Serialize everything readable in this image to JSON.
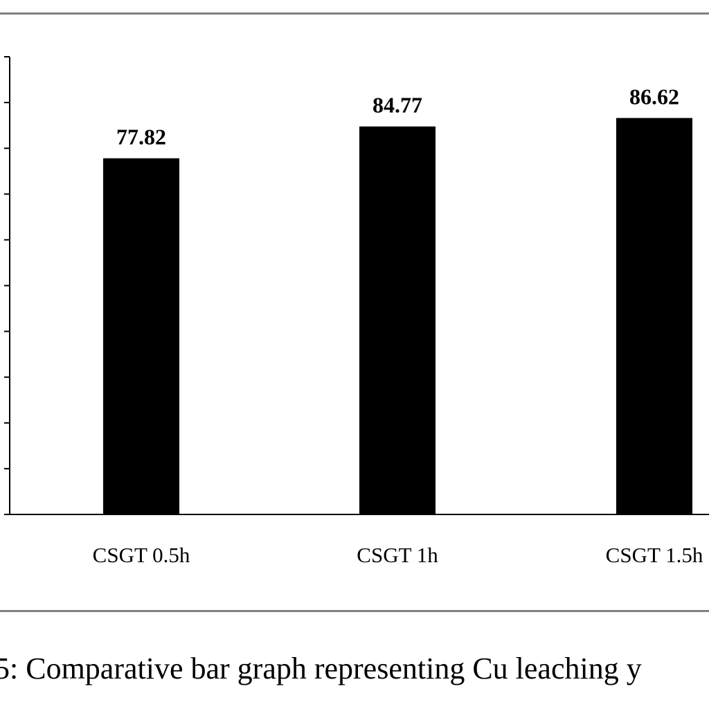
{
  "chart_data": {
    "type": "bar",
    "categories": [
      "CSGT 0.5h",
      "CSGT 1h",
      "CSGT 1.5h"
    ],
    "values": [
      77.82,
      84.77,
      86.62
    ],
    "data_labels": [
      "77.82",
      "84.77",
      "86.62"
    ],
    "ylim": [
      0,
      100
    ],
    "ytick_step": 10,
    "bar_color": "#000000",
    "grid": false,
    "legend": "none",
    "title": "",
    "xlabel": "",
    "ylabel": ""
  },
  "caption": {
    "text": "5:  Comparative bar graph representing Cu leaching y"
  }
}
